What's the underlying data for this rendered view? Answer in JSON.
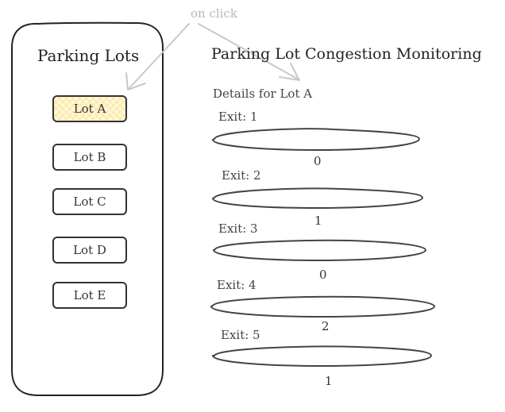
{
  "annotation": {
    "text": "on click"
  },
  "sidebar": {
    "title": "Parking Lots",
    "lots": [
      {
        "label": "Lot A",
        "selected": true
      },
      {
        "label": "Lot B",
        "selected": false
      },
      {
        "label": "Lot C",
        "selected": false
      },
      {
        "label": "Lot D",
        "selected": false
      },
      {
        "label": "Lot E",
        "selected": false
      }
    ]
  },
  "main": {
    "title": "Parking Lot Congestion Monitoring",
    "details_label": "Details for Lot A",
    "exits": [
      {
        "label": "Exit: 1",
        "value": "0"
      },
      {
        "label": "Exit: 2",
        "value": "1"
      },
      {
        "label": "Exit: 3",
        "value": "0"
      },
      {
        "label": "Exit: 4",
        "value": "2"
      },
      {
        "label": "Exit: 5",
        "value": "1"
      }
    ]
  },
  "colors": {
    "selected_fill": "#fff6d6",
    "selected_hatch": "#f0c83c",
    "annotation_gray": "#b8b8b8",
    "ink": "#333333"
  }
}
